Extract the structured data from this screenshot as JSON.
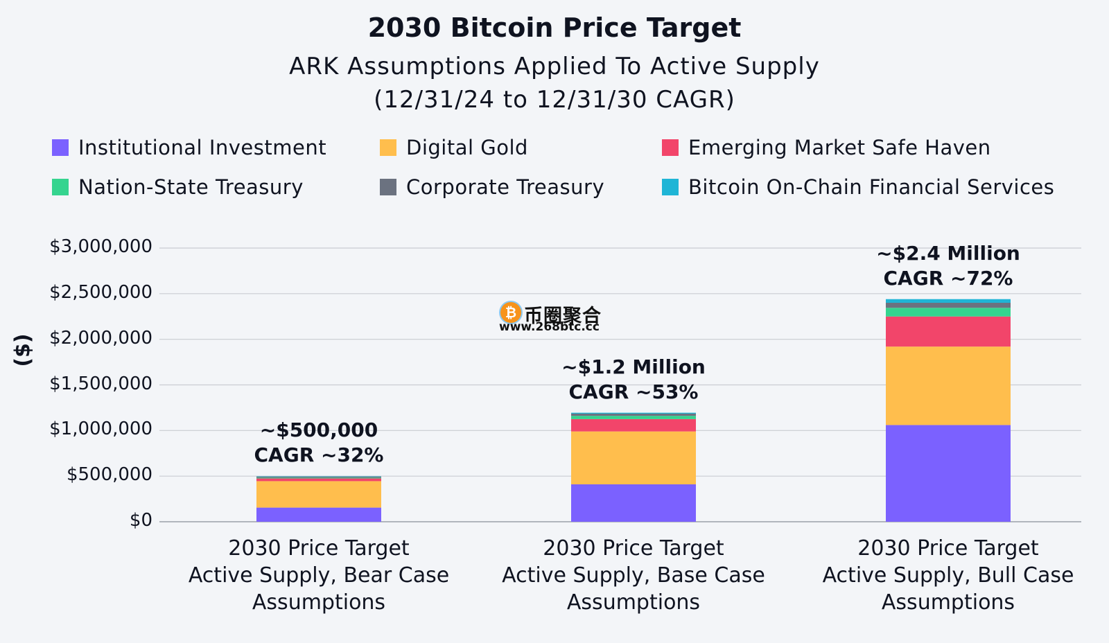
{
  "chart_data": {
    "type": "bar",
    "stacked": true,
    "title": "2030 Bitcoin Price Target",
    "subtitle_lines": [
      "ARK Assumptions Applied To Active Supply",
      "(12/31/24 to 12/31/30 CAGR)"
    ],
    "ylabel": "($)",
    "xlabel": "",
    "ylim": [
      0,
      3000000
    ],
    "yticks": [
      {
        "value": 0,
        "label": "$0"
      },
      {
        "value": 500000,
        "label": "$500,000"
      },
      {
        "value": 1000000,
        "label": "$1,000,000"
      },
      {
        "value": 1500000,
        "label": "$1,500,000"
      },
      {
        "value": 2000000,
        "label": "$2,000,000"
      },
      {
        "value": 2500000,
        "label": "$2,500,000"
      },
      {
        "value": 3000000,
        "label": "$3,000,000"
      }
    ],
    "grid": true,
    "legend_position": "top",
    "categories": [
      [
        "2030 Price Target",
        "Active Supply, Bear Case",
        "Assumptions"
      ],
      [
        "2030 Price Target",
        "Active Supply, Base Case",
        "Assumptions"
      ],
      [
        "2030 Price Target",
        "Active Supply, Bull Case",
        "Assumptions"
      ]
    ],
    "series": [
      {
        "name": "Institutional Investment",
        "color": "#7b61ff",
        "values": [
          155000,
          410000,
          1060000
        ]
      },
      {
        "name": "Digital Gold",
        "color": "#ffbe4d",
        "values": [
          290000,
          580000,
          860000
        ]
      },
      {
        "name": "Emerging Market Safe Haven",
        "color": "#f2456a",
        "values": [
          30000,
          135000,
          330000
        ]
      },
      {
        "name": "Nation-State Treasury",
        "color": "#35d48f",
        "values": [
          8000,
          35000,
          95000
        ]
      },
      {
        "name": "Corporate Treasury",
        "color": "#6b7280",
        "values": [
          12000,
          25000,
          55000
        ]
      },
      {
        "name": "Bitcoin On-Chain Financial Services",
        "color": "#1fb5d6",
        "values": [
          4000,
          10000,
          40000
        ]
      }
    ],
    "annotations": [
      [
        "~$500,000",
        "CAGR ~32%"
      ],
      [
        "~$1.2 Million",
        "CAGR ~53%"
      ],
      [
        "~$2.4 Million",
        "CAGR ~72%"
      ]
    ]
  },
  "watermark": {
    "coin_glyph": "₿",
    "name": "币圈聚合",
    "url": "www.268btc.cc"
  }
}
